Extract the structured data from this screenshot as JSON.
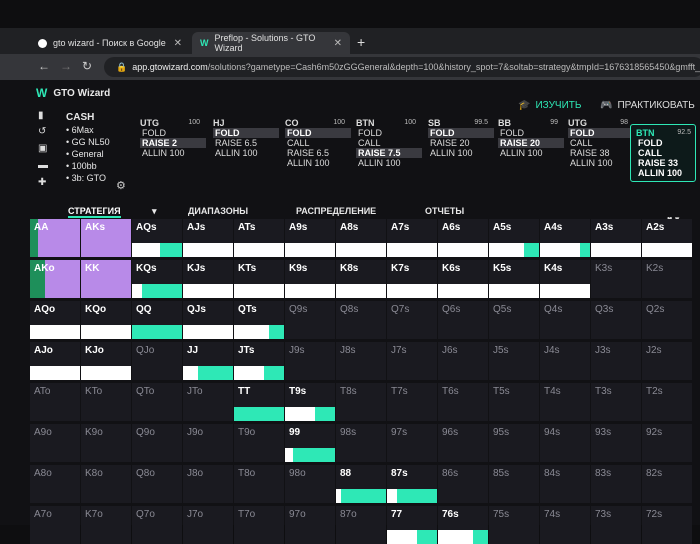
{
  "browser": {
    "tabs": [
      {
        "title": "gto wizard - Поиск в Google",
        "close": "✕"
      },
      {
        "title": "Preflop - Solutions - GTO Wizard",
        "close": "✕"
      }
    ],
    "new_tab": "+",
    "url_host": "app.gtowizard.com",
    "url_path": "/solutions?gametype=Cash6m50zGGGeneral&depth=100&history_spot=7&soltab=strategy&tmpId=1676318565450&gmfft_sort"
  },
  "app": {
    "title": "GTO Wizard",
    "learn_label": "ИЗУЧИТЬ",
    "practice_label": "ПРАКТИКОВАТЬ",
    "game": {
      "type": "CASH",
      "info": [
        "6Max",
        "GG NL50",
        "General",
        "100bb",
        "3b: GTO"
      ]
    },
    "positions": [
      {
        "name": "UTG",
        "stack": "100",
        "actions": [
          "FOLD",
          "RAISE 2",
          "ALLIN 100"
        ],
        "selected": 1
      },
      {
        "name": "HJ",
        "stack": "",
        "actions": [
          "FOLD",
          "RAISE 6.5",
          "ALLIN 100"
        ],
        "selected": 0
      },
      {
        "name": "CO",
        "stack": "100",
        "actions": [
          "FOLD",
          "CALL",
          "RAISE 6.5",
          "ALLIN 100"
        ],
        "selected": 0
      },
      {
        "name": "BTN",
        "stack": "100",
        "actions": [
          "FOLD",
          "CALL",
          "RAISE 7.5",
          "ALLIN 100"
        ],
        "selected": 2
      },
      {
        "name": "SB",
        "stack": "99.5",
        "actions": [
          "FOLD",
          "RAISE 20",
          "ALLIN 100"
        ],
        "selected": 0
      },
      {
        "name": "BB",
        "stack": "99",
        "actions": [
          "FOLD",
          "RAISE 20",
          "ALLIN 100"
        ],
        "selected": 1
      },
      {
        "name": "UTG",
        "stack": "98",
        "actions": [
          "FOLD",
          "CALL",
          "RAISE 38",
          "ALLIN 100"
        ],
        "selected": 0
      },
      {
        "name": "BTN",
        "stack": "92.5",
        "actions": [
          "FOLD",
          "CALL",
          "RAISE 33",
          "ALLIN 100"
        ],
        "selected": -1
      }
    ],
    "view_tabs": [
      "СТРАТЕГИЯ",
      "ДИАПАЗОНЫ",
      "РАСПРЕДЕЛЕНИЕ",
      "ОТЧЕТЫ"
    ],
    "strategy_dropdown": "▾",
    "colors": {
      "fold": "#ffffff",
      "call": "#2ee8b6",
      "raise": "#1e8f5a",
      "allin": "#b88ae8",
      "cell": "#1a1a20"
    },
    "grid": [
      [
        "AA",
        "AKs",
        "AQs",
        "AJs",
        "ATs",
        "A9s",
        "A8s",
        "A7s",
        "A6s",
        "A5s",
        "A4s",
        "A3s",
        "A2s"
      ],
      [
        "AKo",
        "KK",
        "KQs",
        "KJs",
        "KTs",
        "K9s",
        "K8s",
        "K7s",
        "K6s",
        "K5s",
        "K4s",
        "K3s",
        "K2s"
      ],
      [
        "AQo",
        "KQo",
        "QQ",
        "QJs",
        "QTs",
        "Q9s",
        "Q8s",
        "Q7s",
        "Q6s",
        "Q5s",
        "Q4s",
        "Q3s",
        "Q2s"
      ],
      [
        "AJo",
        "KJo",
        "QJo",
        "JJ",
        "JTs",
        "J9s",
        "J8s",
        "J7s",
        "J6s",
        "J5s",
        "J4s",
        "J3s",
        "J2s"
      ],
      [
        "ATo",
        "KTo",
        "QTo",
        "JTo",
        "TT",
        "T9s",
        "T8s",
        "T7s",
        "T6s",
        "T5s",
        "T4s",
        "T3s",
        "T2s"
      ],
      [
        "A9o",
        "K9o",
        "Q9o",
        "J9o",
        "T9o",
        "99",
        "98s",
        "97s",
        "96s",
        "95s",
        "94s",
        "93s",
        "92s"
      ],
      [
        "A8o",
        "K8o",
        "Q8o",
        "J8o",
        "T8o",
        "98o",
        "88",
        "87s",
        "86s",
        "85s",
        "84s",
        "83s",
        "82s"
      ],
      [
        "A7o",
        "K7o",
        "Q7o",
        "J7o",
        "T7o",
        "97o",
        "87o",
        "77",
        "76s",
        "75s",
        "74s",
        "73s",
        "72s"
      ]
    ],
    "mix": {
      "AA": [
        0,
        0,
        0.15,
        0.85
      ],
      "AKs": [
        0,
        0,
        0,
        1
      ],
      "AQs": [
        0.55,
        0.45,
        0,
        0
      ],
      "AJs": [
        1,
        0,
        0,
        0
      ],
      "ATs": [
        1,
        0,
        0,
        0
      ],
      "A9s": [
        1,
        0,
        0,
        0
      ],
      "A8s": [
        1,
        0,
        0,
        0
      ],
      "A7s": [
        1,
        0,
        0,
        0
      ],
      "A6s": [
        1,
        0,
        0,
        0
      ],
      "A5s": [
        0.7,
        0.3,
        0,
        0
      ],
      "A4s": [
        0.8,
        0.2,
        0,
        0
      ],
      "A3s": [
        1,
        0,
        0,
        0
      ],
      "A2s": [
        1,
        0,
        0,
        0
      ],
      "AKo": [
        0,
        0,
        0.3,
        0.7
      ],
      "KK": [
        0,
        0,
        0,
        1
      ],
      "KQs": [
        0.2,
        0.8,
        0,
        0
      ],
      "KJs": [
        1,
        0,
        0,
        0
      ],
      "KTs": [
        1,
        0,
        0,
        0
      ],
      "K9s": [
        1,
        0,
        0,
        0
      ],
      "K8s": [
        1,
        0,
        0,
        0
      ],
      "K7s": [
        1,
        0,
        0,
        0
      ],
      "K6s": [
        1,
        0,
        0,
        0
      ],
      "K5s": [
        1,
        0,
        0,
        0
      ],
      "K4s": [
        1,
        0,
        0,
        0
      ],
      "AQo": [
        1,
        0,
        0,
        0
      ],
      "KQo": [
        1,
        0,
        0,
        0
      ],
      "QQ": [
        0,
        1,
        0,
        0
      ],
      "QJs": [
        1,
        0,
        0,
        0
      ],
      "QTs": [
        0.7,
        0.3,
        0,
        0
      ],
      "AJo": [
        1,
        0,
        0,
        0
      ],
      "KJo": [
        1,
        0,
        0,
        0
      ],
      "JJ": [
        0.3,
        0.7,
        0,
        0
      ],
      "JTs": [
        0.6,
        0.4,
        0,
        0
      ],
      "TT": [
        0,
        1,
        0,
        0
      ],
      "T9s": [
        0.6,
        0.4,
        0,
        0
      ],
      "99": [
        0.15,
        0.85,
        0,
        0
      ],
      "88": [
        0.1,
        0.9,
        0,
        0
      ],
      "87s": [
        0.2,
        0.8,
        0,
        0
      ],
      "77": [
        0.6,
        0.4,
        0,
        0
      ],
      "76s": [
        0.7,
        0.3,
        0,
        0
      ]
    }
  }
}
